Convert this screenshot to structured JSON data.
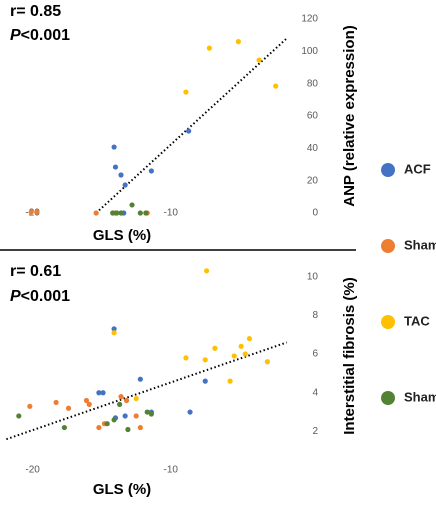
{
  "chart_data": [
    {
      "type": "scatter",
      "annotations": [
        "r= 0.85",
        "P<0.001"
      ],
      "x_label": "GLS (%)",
      "y_label": "ANP (relative expression)",
      "xlim": [
        -22,
        -1
      ],
      "xticks": [
        -20,
        -10
      ],
      "ylim": [
        0,
        120
      ],
      "yticks": [
        0,
        20,
        40,
        60,
        80,
        100,
        120
      ],
      "series": [
        {
          "name": "ACF",
          "color": "#4472c4",
          "x": [
            -14.1,
            -14.0,
            -13.6,
            -13.3,
            -11.4,
            -8.7,
            -14.0,
            -13.4
          ],
          "values": [
            40.8,
            28.4,
            23.5,
            17.3,
            26,
            50.7,
            0,
            0
          ]
        },
        {
          "name": "Shamₐ",
          "color": "#ed7d31",
          "x": [
            -20.1,
            -19.7,
            -15.4,
            -14.0,
            -11.7
          ],
          "values": [
            0.6,
            0.6,
            0,
            0,
            0
          ]
        },
        {
          "name": "TAC",
          "color": "#ffc000",
          "x": [
            -8.9,
            -7.2,
            -5.1,
            -3.6,
            -2.4
          ],
          "values": [
            74.8,
            102,
            106,
            94.6,
            78.5
          ]
        },
        {
          "name": "Shamₜ",
          "color": "#548235",
          "x": [
            -14.2,
            -13.9,
            -13.6,
            -12.8,
            -12.2,
            -11.8
          ],
          "values": [
            0,
            0,
            0,
            5,
            0,
            0
          ]
        }
      ],
      "trendline": {
        "x": [
          -15.4,
          -1.6
        ],
        "values": [
          0,
          108
        ]
      }
    },
    {
      "type": "scatter",
      "annotations": [
        "r= 0.61",
        "P<0.001"
      ],
      "x_label": "GLS (%)",
      "y_label": "Interstitial fibrosis (%)",
      "xlim": [
        -22,
        -1
      ],
      "xticks": [
        -20,
        -10
      ],
      "ylim": [
        1.3,
        10.6
      ],
      "yticks": [
        2,
        4,
        6,
        8,
        10
      ],
      "series": [
        {
          "color": "#4472c4",
          "x": [
            -14.1,
            -15.2,
            -14.9,
            -14.0,
            -13.3,
            -12.2,
            -11.4,
            -8.6,
            -7.5
          ],
          "values": [
            7.3,
            4.0,
            4.0,
            2.7,
            2.8,
            4.7,
            3.0,
            3.0,
            4.6
          ]
        },
        {
          "color": "#ed7d31",
          "x": [
            -20.2,
            -18.3,
            -16.1,
            -15.9,
            -15.2,
            -14.8,
            -13.6,
            -13.2,
            -12.5,
            -12.2,
            -17.4
          ],
          "values": [
            3.3,
            3.5,
            3.6,
            3.4,
            2.2,
            2.4,
            3.8,
            3.6,
            2.8,
            2.2,
            3.2
          ]
        },
        {
          "color": "#ffc000",
          "x": [
            -7.4,
            -14.1,
            -8.9,
            -7.5,
            -6.8,
            -4.9,
            -4.3,
            -5.4,
            -5.7,
            -3.0,
            -4.6,
            -12.5
          ],
          "values": [
            10.3,
            7.1,
            5.8,
            5.7,
            6.3,
            6.4,
            6.8,
            5.9,
            4.6,
            5.6,
            6.0,
            3.7
          ]
        },
        {
          "color": "#548235",
          "x": [
            -21.0,
            -17.7,
            -14.6,
            -14.1,
            -13.1,
            -11.7,
            -11.4,
            -13.7
          ],
          "values": [
            2.8,
            2.2,
            2.4,
            2.6,
            2.1,
            3.0,
            2.9,
            3.4
          ]
        }
      ],
      "trendline": {
        "x": [
          -21.9,
          -1.6
        ],
        "values": [
          1.6,
          6.6
        ]
      }
    }
  ]
}
